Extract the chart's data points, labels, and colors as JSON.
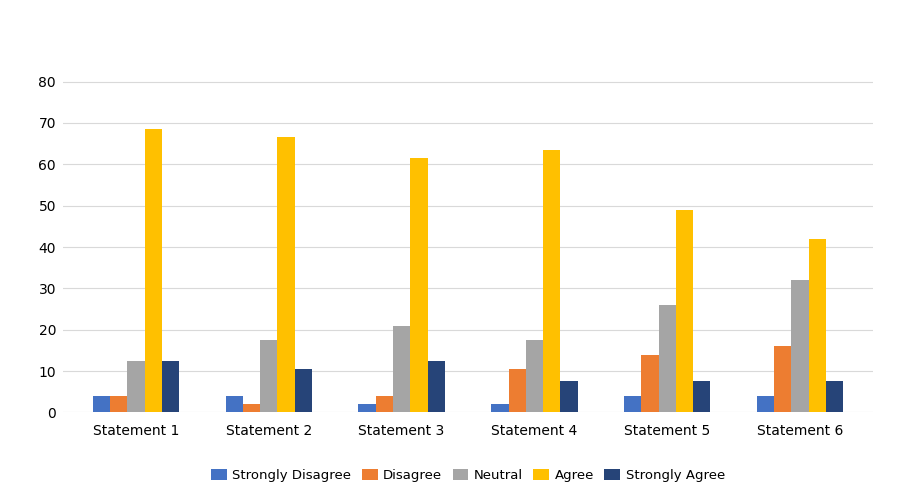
{
  "categories": [
    "Statement 1",
    "Statement 2",
    "Statement 3",
    "Statement 4",
    "Statement 5",
    "Statement 6"
  ],
  "series": [
    {
      "label": "Strongly Disagree",
      "color": "#4472C4",
      "values": [
        4,
        4,
        2,
        2,
        4,
        4
      ]
    },
    {
      "label": "Disagree",
      "color": "#ED7D31",
      "values": [
        4,
        2,
        4,
        10.5,
        14,
        16
      ]
    },
    {
      "label": "Neutral",
      "color": "#A5A5A5",
      "values": [
        12.5,
        17.5,
        21,
        17.5,
        26,
        32
      ]
    },
    {
      "label": "Agree",
      "color": "#FFC000",
      "values": [
        68.5,
        66.5,
        61.5,
        63.5,
        49,
        42
      ]
    },
    {
      "label": "Strongly Agree",
      "color": "#264478",
      "values": [
        12.5,
        10.5,
        12.5,
        7.5,
        7.5,
        7.5
      ]
    }
  ],
  "ylim": [
    0,
    90
  ],
  "yticks": [
    0,
    10,
    20,
    30,
    40,
    50,
    60,
    70,
    80
  ],
  "background_color": "#ffffff",
  "grid_color": "#d9d9d9",
  "bar_width": 0.13,
  "legend_position": "lower center",
  "legend_ncol": 5,
  "figure_width": 9.0,
  "figure_height": 5.03,
  "dpi": 100
}
